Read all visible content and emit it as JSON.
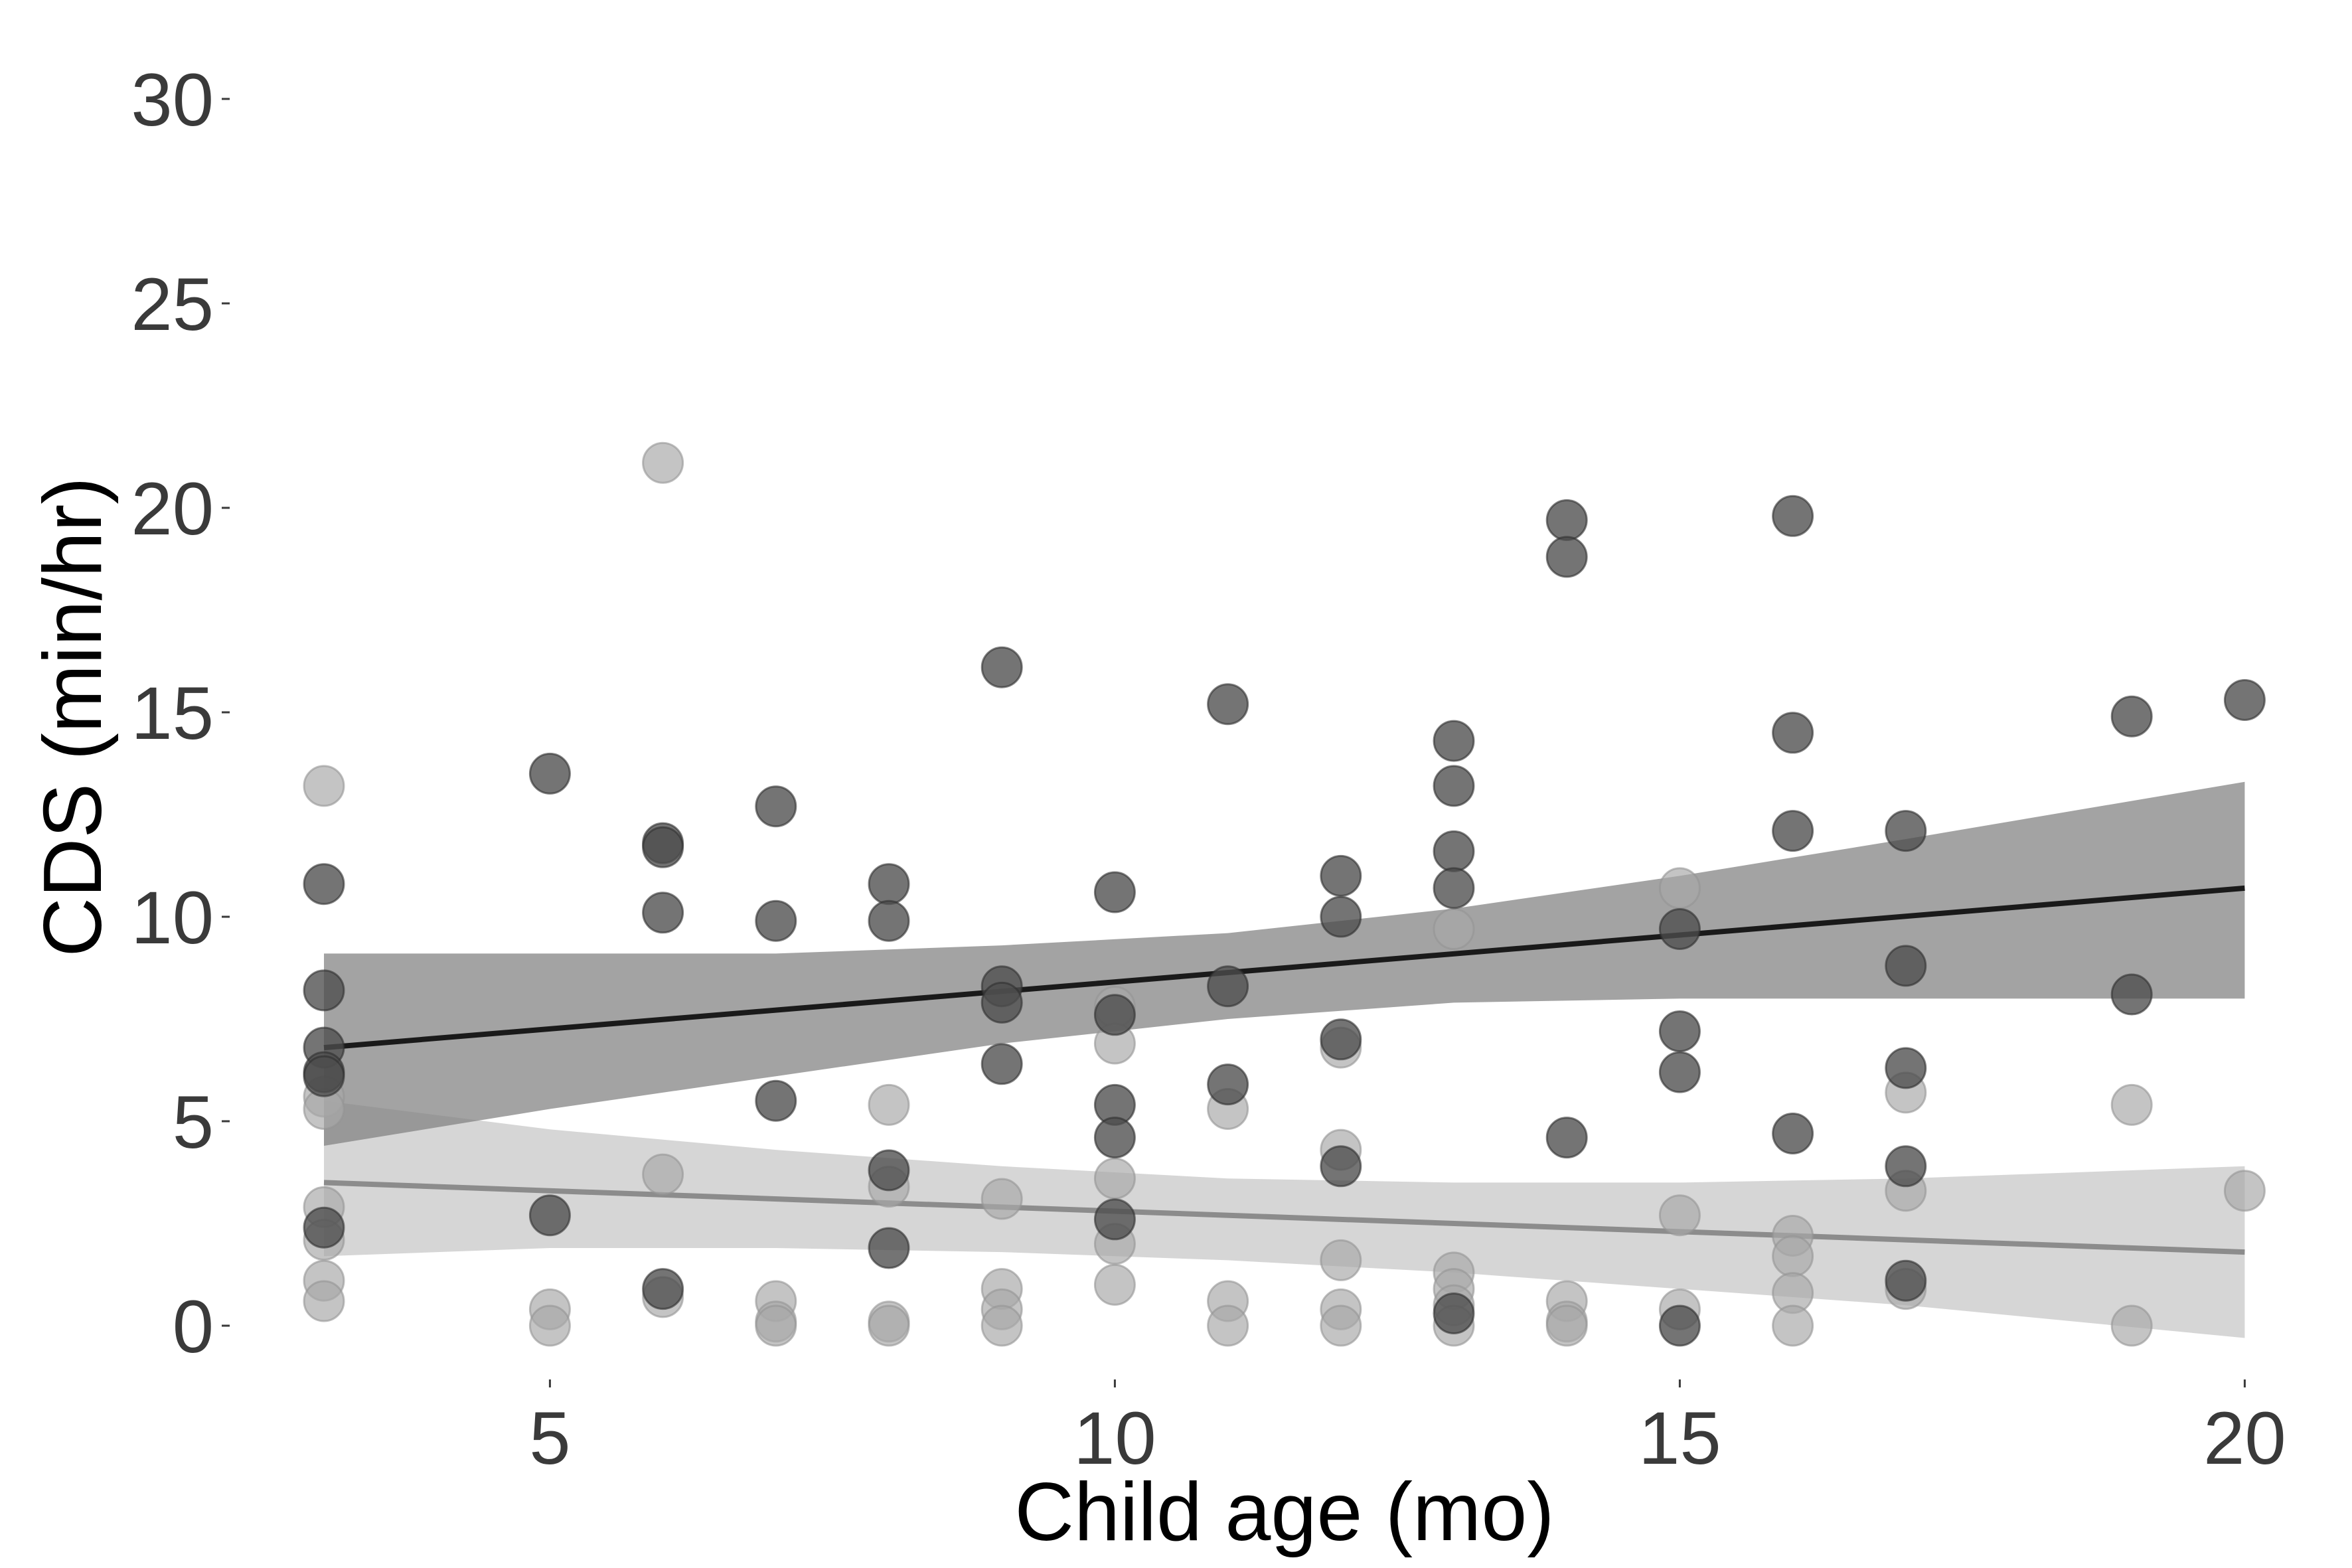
{
  "chart_data": {
    "type": "scatter",
    "title": "",
    "xlabel": "Child age (mo)",
    "ylabel": "CDS (min/hr)",
    "xlim": [
      2.2,
      20.6
    ],
    "ylim": [
      -1.5,
      31
    ],
    "xticks": [
      5,
      10,
      15,
      20
    ],
    "yticks": [
      0,
      5,
      10,
      15,
      20,
      25,
      30
    ],
    "grid": false,
    "legend": "none",
    "series": [
      {
        "color": "#4d4d4d",
        "points": [
          [
            3,
            10.8
          ],
          [
            3,
            8.2
          ],
          [
            3,
            6.8
          ],
          [
            3,
            6.2
          ],
          [
            3,
            6.1
          ],
          [
            3,
            2.4
          ],
          [
            5,
            13.5
          ],
          [
            5,
            2.7
          ],
          [
            6,
            11.8
          ],
          [
            6,
            11.7
          ],
          [
            6,
            10.1
          ],
          [
            6,
            0.9
          ],
          [
            7,
            12.7
          ],
          [
            7,
            9.9
          ],
          [
            7,
            5.5
          ],
          [
            8,
            10.8
          ],
          [
            8,
            9.9
          ],
          [
            8,
            3.8
          ],
          [
            8,
            1.9
          ],
          [
            9,
            16.1
          ],
          [
            9,
            8.3
          ],
          [
            9,
            7.9
          ],
          [
            9,
            6.4
          ],
          [
            10,
            10.6
          ],
          [
            10,
            7.6
          ],
          [
            10,
            5.4
          ],
          [
            10,
            4.6
          ],
          [
            10,
            2.6
          ],
          [
            11,
            15.2
          ],
          [
            11,
            8.3
          ],
          [
            11,
            5.9
          ],
          [
            12,
            11.0
          ],
          [
            12,
            10.0
          ],
          [
            12,
            7.0
          ],
          [
            12,
            3.9
          ],
          [
            13,
            14.3
          ],
          [
            13,
            13.2
          ],
          [
            13,
            11.6
          ],
          [
            13,
            10.7
          ],
          [
            13,
            0.3
          ],
          [
            14,
            19.7
          ],
          [
            14,
            18.8
          ],
          [
            14,
            4.6
          ],
          [
            15,
            9.7
          ],
          [
            15,
            7.2
          ],
          [
            15,
            6.2
          ],
          [
            15,
            0.0
          ],
          [
            16,
            19.8
          ],
          [
            16,
            14.5
          ],
          [
            16,
            12.1
          ],
          [
            16,
            4.7
          ],
          [
            17,
            12.1
          ],
          [
            17,
            8.8
          ],
          [
            17,
            6.3
          ],
          [
            17,
            3.9
          ],
          [
            17,
            1.1
          ],
          [
            19,
            14.9
          ],
          [
            19,
            8.1
          ],
          [
            20,
            15.3
          ]
        ],
        "fit": {
          "x": [
            3,
            20
          ],
          "y": [
            6.8,
            10.7
          ]
        },
        "band": {
          "x": [
            3,
            5,
            7,
            9,
            11,
            13,
            15,
            17,
            20
          ],
          "lower": [
            4.4,
            5.3,
            6.1,
            6.9,
            7.5,
            7.9,
            8.0,
            8.0,
            8.0
          ],
          "upper": [
            9.1,
            9.1,
            9.1,
            9.3,
            9.6,
            10.2,
            11.0,
            11.9,
            13.3
          ]
        }
      },
      {
        "color": "#a8a8a8",
        "points": [
          [
            3,
            13.2
          ],
          [
            3,
            5.6
          ],
          [
            3,
            5.3
          ],
          [
            3,
            2.9
          ],
          [
            3,
            2.1
          ],
          [
            3,
            1.1
          ],
          [
            3,
            0.6
          ],
          [
            5,
            0.4
          ],
          [
            5,
            0.0
          ],
          [
            6,
            21.1
          ],
          [
            6,
            3.7
          ],
          [
            6,
            0.7
          ],
          [
            7,
            0.6
          ],
          [
            7,
            0.1
          ],
          [
            7,
            0.0
          ],
          [
            8,
            5.4
          ],
          [
            8,
            3.4
          ],
          [
            8,
            0.1
          ],
          [
            8,
            0.0
          ],
          [
            9,
            3.1
          ],
          [
            9,
            0.9
          ],
          [
            9,
            0.4
          ],
          [
            9,
            0.0
          ],
          [
            10,
            7.8
          ],
          [
            10,
            6.9
          ],
          [
            10,
            3.6
          ],
          [
            10,
            2.0
          ],
          [
            10,
            1.0
          ],
          [
            11,
            5.3
          ],
          [
            11,
            0.6
          ],
          [
            11,
            0.0
          ],
          [
            12,
            6.8
          ],
          [
            12,
            4.3
          ],
          [
            12,
            1.6
          ],
          [
            12,
            0.4
          ],
          [
            12,
            0.0
          ],
          [
            13,
            9.7
          ],
          [
            13,
            1.3
          ],
          [
            13,
            0.9
          ],
          [
            13,
            0.5
          ],
          [
            13,
            0.0
          ],
          [
            14,
            0.6
          ],
          [
            14,
            0.1
          ],
          [
            14,
            0.0
          ],
          [
            15,
            10.7
          ],
          [
            15,
            2.7
          ],
          [
            15,
            0.4
          ],
          [
            16,
            2.2
          ],
          [
            16,
            1.7
          ],
          [
            16,
            0.8
          ],
          [
            16,
            0.0
          ],
          [
            17,
            5.7
          ],
          [
            17,
            3.3
          ],
          [
            17,
            0.9
          ],
          [
            19,
            5.4
          ],
          [
            19,
            0.0
          ],
          [
            20,
            3.3
          ]
        ],
        "fit": {
          "x": [
            3,
            20
          ],
          "y": [
            3.5,
            1.8
          ]
        },
        "band": {
          "x": [
            3,
            5,
            7,
            9,
            11,
            13,
            15,
            17,
            20
          ],
          "lower": [
            1.7,
            1.9,
            1.9,
            1.8,
            1.6,
            1.3,
            0.9,
            0.5,
            -0.3
          ],
          "upper": [
            5.5,
            4.8,
            4.3,
            3.9,
            3.6,
            3.5,
            3.5,
            3.6,
            3.9
          ]
        }
      }
    ]
  }
}
